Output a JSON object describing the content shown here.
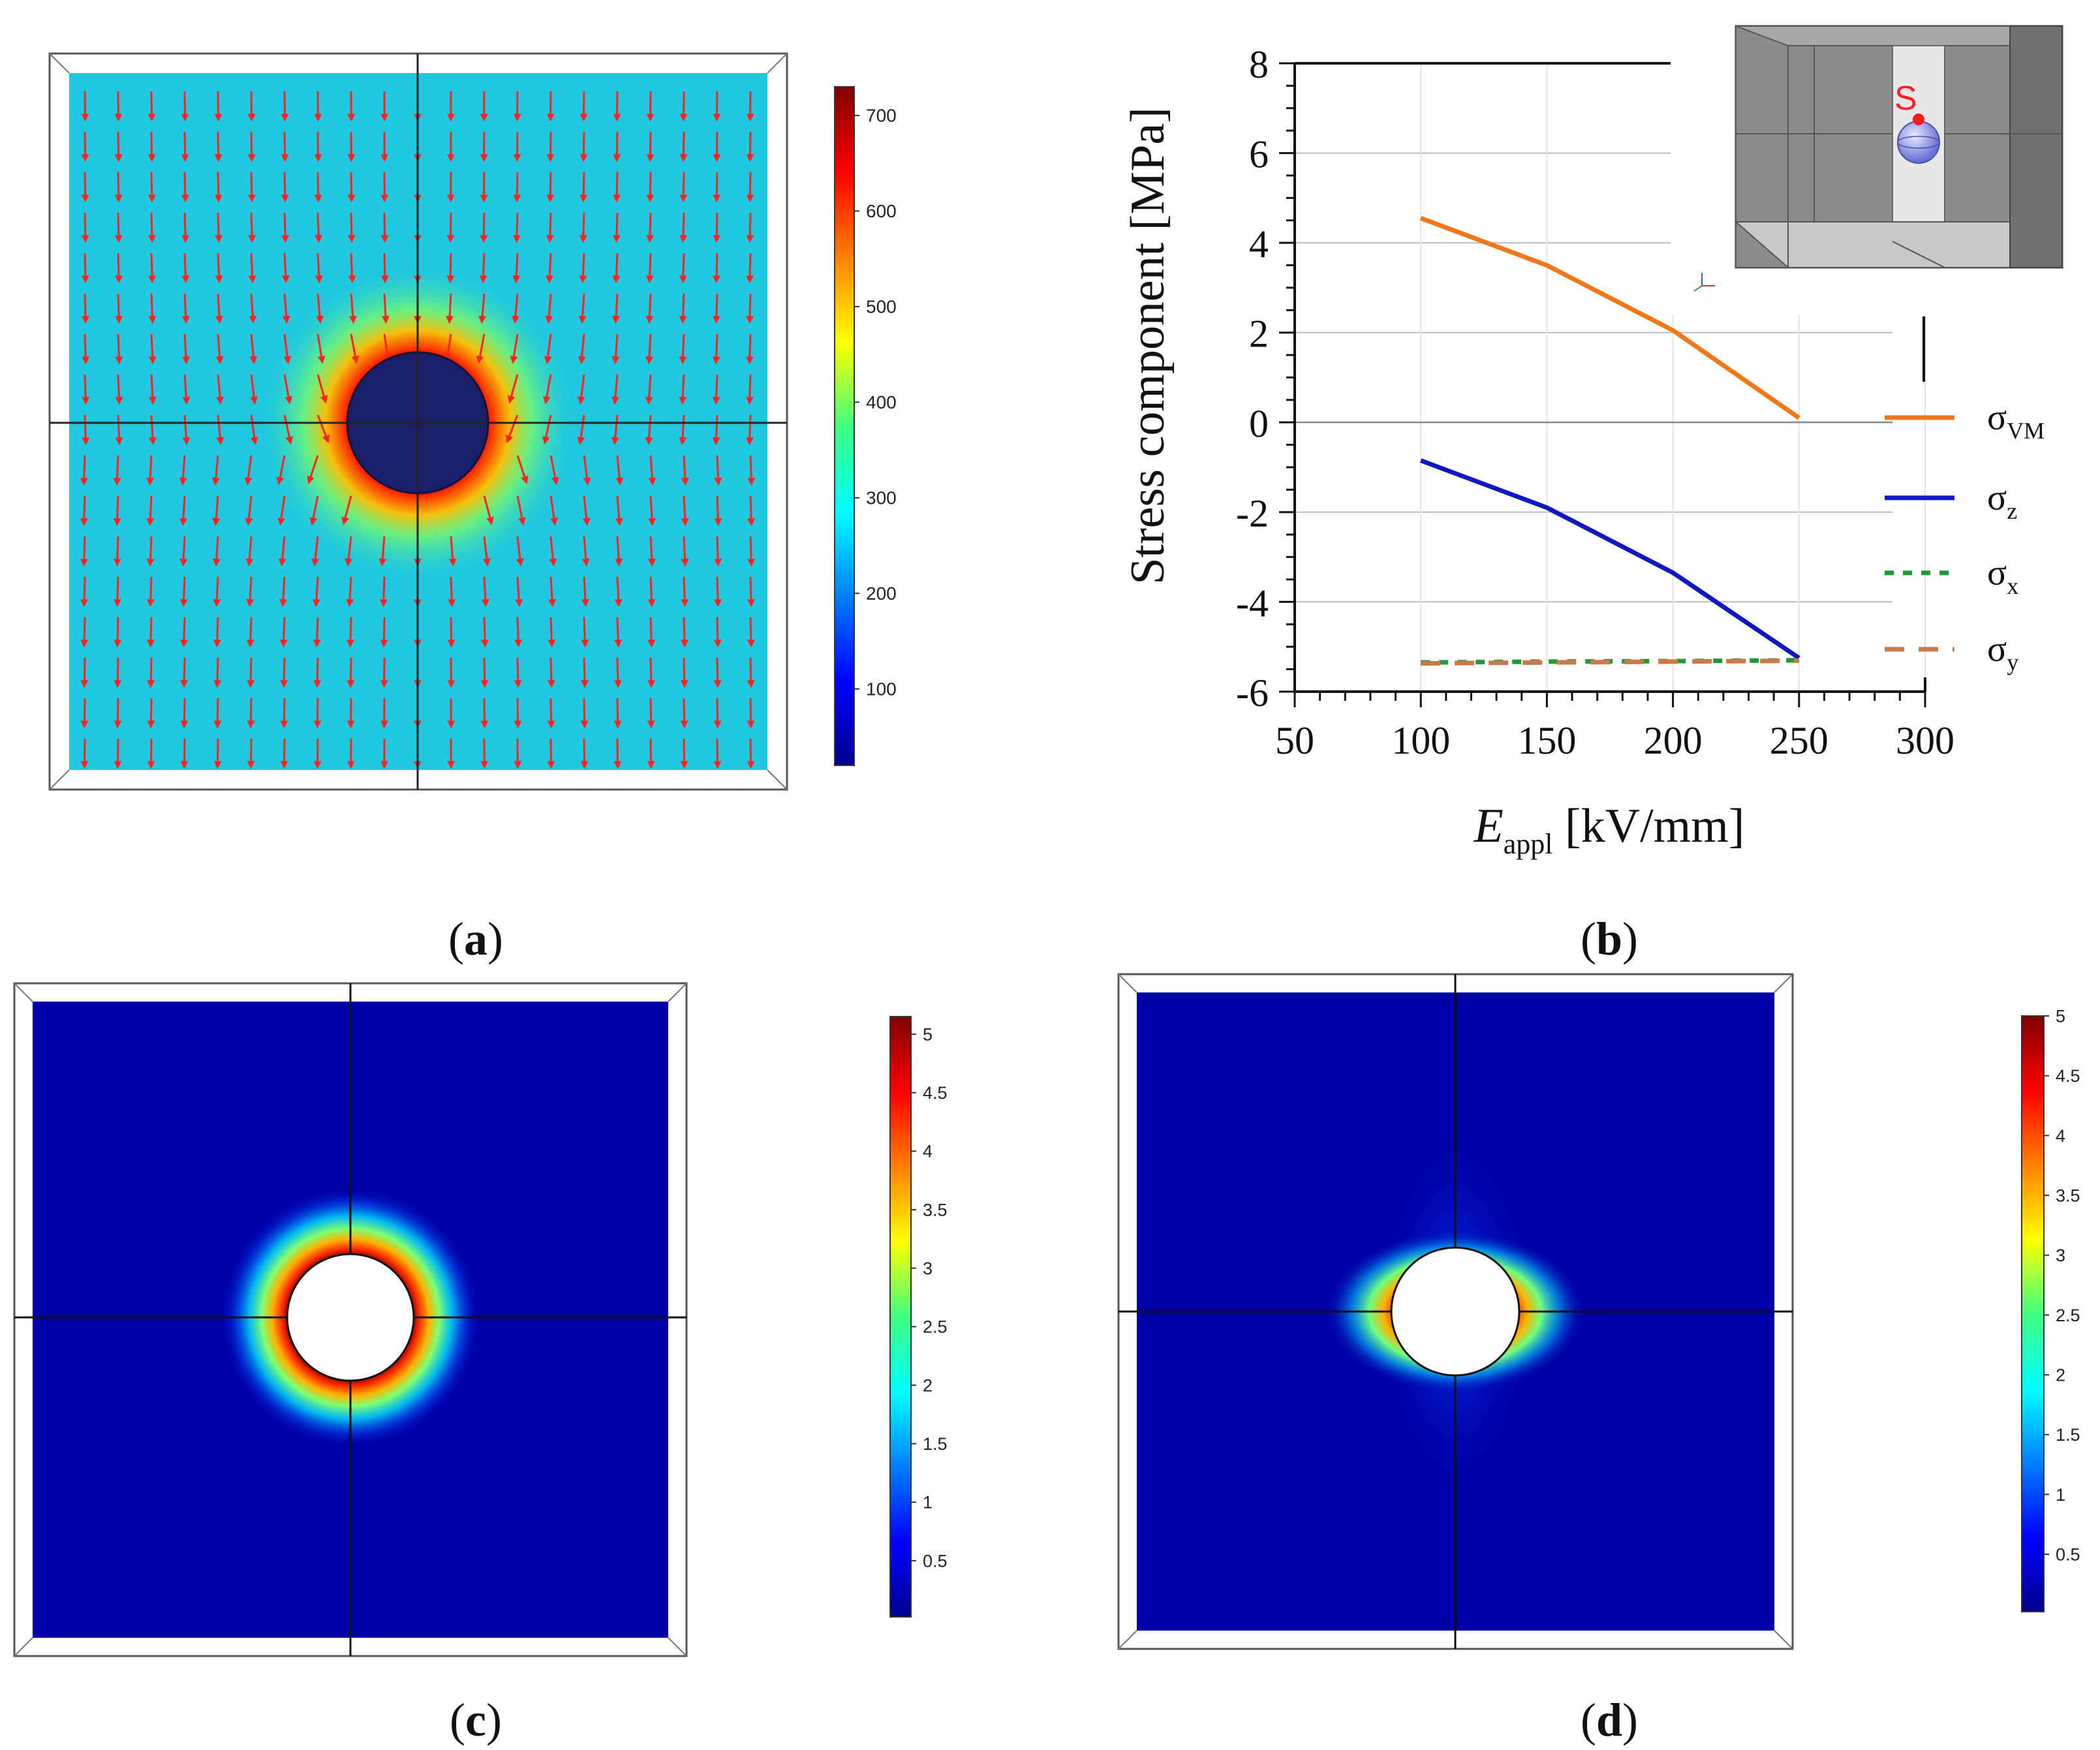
{
  "panels": {
    "a": {
      "caption_letter": "a",
      "open": "(",
      "close": ")"
    },
    "b": {
      "caption_letter": "b",
      "open": "(",
      "close": ")"
    },
    "c": {
      "caption_letter": "c",
      "open": "(",
      "close": ")"
    },
    "d": {
      "caption_letter": "d",
      "open": "(",
      "close": ")"
    }
  },
  "colorbars": {
    "a": {
      "ticks": [
        "100",
        "200",
        "300",
        "400",
        "500",
        "600",
        "700"
      ],
      "min": 20,
      "max": 730
    },
    "c": {
      "ticks": [
        "0.5",
        "1",
        "1.5",
        "2",
        "2.5",
        "3",
        "3.5",
        "4",
        "4.5",
        "5"
      ],
      "min": 0.02,
      "max": 5.15
    },
    "d": {
      "ticks": [
        "0.5",
        "1",
        "1.5",
        "2",
        "2.5",
        "3",
        "3.5",
        "4",
        "4.5",
        "5"
      ],
      "min": 0.02,
      "max": 5.0
    }
  },
  "inset": {
    "label": "S"
  },
  "chart_data": {
    "type": "line",
    "title": "",
    "xlabel_main": "E",
    "xlabel_sub": "appl",
    "xlabel_unit": " [kV/mm]",
    "ylabel": "Stress component [MPa]",
    "xlim": [
      50,
      300
    ],
    "ylim": [
      -6,
      8
    ],
    "xticks": [
      "50",
      "100",
      "150",
      "200",
      "250",
      "300"
    ],
    "yticks": [
      "-6",
      "-4",
      "-2",
      "0",
      "2",
      "4",
      "6",
      "8"
    ],
    "series": [
      {
        "name": "σ",
        "sub": "VM",
        "color": "#f07818",
        "dash": "solid",
        "x": [
          100,
          150,
          200,
          250
        ],
        "y": [
          4.55,
          3.5,
          2.05,
          0.1
        ]
      },
      {
        "name": "σ",
        "sub": "z",
        "color": "#1018c0",
        "dash": "solid",
        "x": [
          100,
          150,
          200,
          250
        ],
        "y": [
          -0.85,
          -1.9,
          -3.35,
          -5.25
        ]
      },
      {
        "name": "σ",
        "sub": "x",
        "color": "#1e9a3a",
        "dash": "dotted",
        "x": [
          100,
          150,
          200,
          250
        ],
        "y": [
          -5.35,
          -5.33,
          -5.32,
          -5.3
        ]
      },
      {
        "name": "σ",
        "sub": "y",
        "color": "#c87a4a",
        "dash": "dashed",
        "x": [
          100,
          150,
          200,
          250
        ],
        "y": [
          -5.37,
          -5.35,
          -5.33,
          -5.31
        ]
      }
    ]
  }
}
